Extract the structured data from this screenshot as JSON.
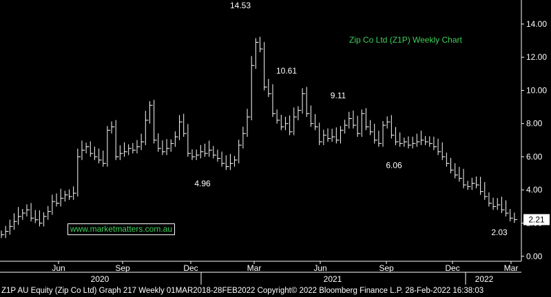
{
  "chart_data": {
    "type": "line",
    "title": "Zip Co Ltd (Z1P) Weekly Chart",
    "watermark": "www.marketmatters.com.au",
    "y_ticks": [
      "0.00",
      "2.00",
      "4.00",
      "6.00",
      "8.00",
      "10.00",
      "12.00",
      "14.00"
    ],
    "ylim": [
      -0.3,
      15.2
    ],
    "x_month_labels": [
      "Jun",
      "Sep",
      "Dec",
      "Mar",
      "Jun",
      "Sep",
      "Dec",
      "Mar"
    ],
    "x_year_labels": [
      "2020",
      "2021",
      "2022"
    ],
    "last_price_label": "2.21",
    "annotations": [
      {
        "label": "14.53",
        "value": 14.53
      },
      {
        "label": "10.61",
        "value": 10.61
      },
      {
        "label": "9.11",
        "value": 9.11
      },
      {
        "label": "4.96",
        "value": 4.96
      },
      {
        "label": "6.06",
        "value": 6.06
      },
      {
        "label": "2.03",
        "value": 2.03
      }
    ],
    "series": [
      {
        "values": [
          1.3,
          1.5,
          1.8,
          2.1,
          2.4,
          2.6,
          2.8,
          2.3,
          2.2,
          2.0,
          2.4,
          2.7,
          3.3,
          3.2,
          3.5,
          3.7,
          3.6,
          3.8,
          6.0,
          6.4,
          6.6,
          6.2,
          6.0,
          5.8,
          5.6,
          7.6,
          7.8,
          6.0,
          6.2,
          6.3,
          6.5,
          6.4,
          6.6,
          6.9,
          8.2,
          9.1,
          7.0,
          6.5,
          6.3,
          6.5,
          6.8,
          7.2,
          8.1,
          7.4,
          6.2,
          6.0,
          6.1,
          6.3,
          6.2,
          6.4,
          6.1,
          5.9,
          5.6,
          5.4,
          5.6,
          5.8,
          6.7,
          7.4,
          8.4,
          11.5,
          12.9,
          12.5,
          10.2,
          9.8,
          8.6,
          8.2,
          7.8,
          8.0,
          7.5,
          8.4,
          8.8,
          9.8,
          8.6,
          8.0,
          7.8,
          6.9,
          7.3,
          7.1,
          7.2,
          7.0,
          7.6,
          7.9,
          8.3,
          7.9,
          7.4,
          8.6,
          7.8,
          7.5,
          7.0,
          6.8,
          7.9,
          8.1,
          7.3,
          6.9,
          6.8,
          6.9,
          6.7,
          6.8,
          6.9,
          7.0,
          6.9,
          6.8,
          6.6,
          6.3,
          6.0,
          5.6,
          5.2,
          4.9,
          4.7,
          4.3,
          4.2,
          4.4,
          4.3,
          3.9,
          3.6,
          3.2,
          3.0,
          3.1,
          2.8,
          2.6,
          2.3,
          2.21
        ]
      }
    ]
  },
  "footer": "Z1P AU Equity (Zip Co Ltd) Graph 217  Weekly 01MAR2018-28FEB2022 Copyright© 2022 Bloomberg Finance L.P. 28-Feb-2022 16:38:03",
  "colors": {
    "background": "#000000",
    "price": "#ffffff",
    "title": "#3fd05a",
    "axis": "#ffffff"
  }
}
